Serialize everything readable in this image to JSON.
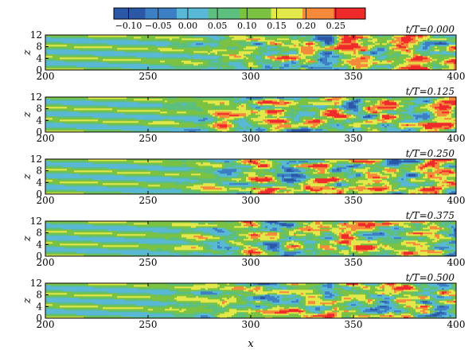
{
  "chart_data": {
    "type": "heatmap",
    "xlabel": "x",
    "ylabel": "z",
    "xlim": [
      200,
      400
    ],
    "ylim": [
      0,
      12
    ],
    "x_ticks": [
      "200",
      "250",
      "300",
      "350",
      "400"
    ],
    "y_ticks": [
      "0",
      "4",
      "8",
      "12"
    ],
    "colorbar": {
      "tick_labels": [
        "−0.10",
        "−0.05",
        "0.00",
        "0.05",
        "0.10",
        "0.15",
        "0.20",
        "0.25"
      ],
      "levels": [
        -0.125,
        -0.1,
        -0.075,
        -0.05,
        -0.025,
        0.0,
        0.025,
        0.05,
        0.075,
        0.1,
        0.125,
        0.15,
        0.175,
        0.2,
        0.225,
        0.25,
        0.275
      ],
      "colors": [
        "#2b58a6",
        "#3d7fc4",
        "#59b8d6",
        "#5dbf7e",
        "#7cc242",
        "#e3e84b",
        "#f58a3a",
        "#ee2a2a"
      ]
    },
    "panels": [
      {
        "annotation": "t/T=0.000",
        "phase": 0.0
      },
      {
        "annotation": "t/T=0.125",
        "phase": 0.125
      },
      {
        "annotation": "t/T=0.250",
        "phase": 0.25
      },
      {
        "annotation": "t/T=0.375",
        "phase": 0.375
      },
      {
        "annotation": "t/T=0.500",
        "phase": 0.5
      }
    ],
    "field": {
      "streak_spanwise_wavelength": 4,
      "transition_onset_x": 250,
      "turbulent_x": 310
    }
  }
}
